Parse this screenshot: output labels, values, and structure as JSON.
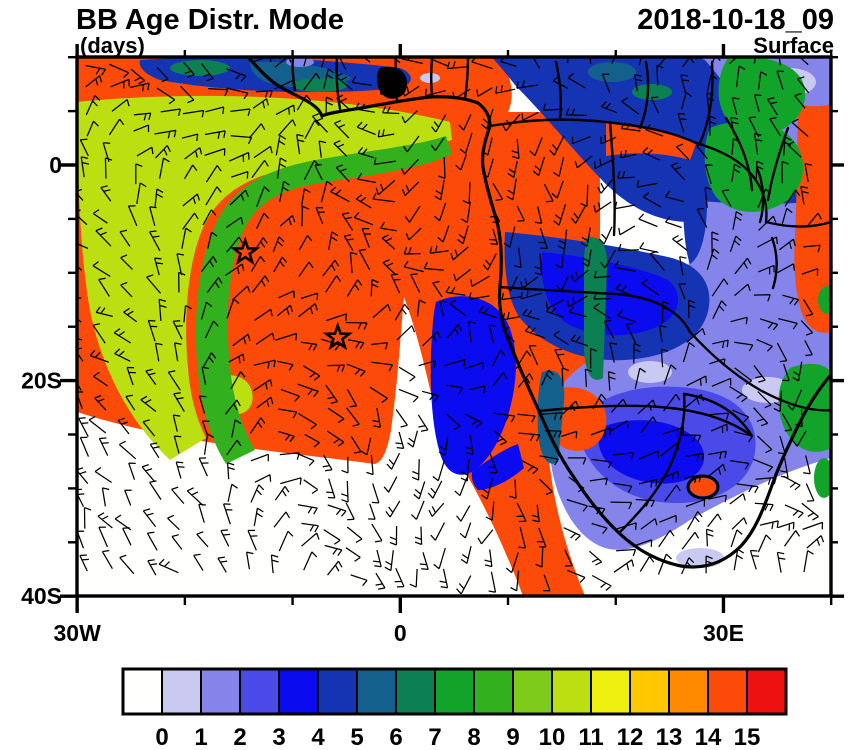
{
  "header": {
    "title": "BB Age Distr. Mode",
    "units_label": "(days)",
    "datetime_label": "2018-10-18_09",
    "level_label": "Surface"
  },
  "chart_data": {
    "type": "heatmap",
    "subtype": "geographic filled-contour map (age in days) with wind-barb overlay over Africa / South Atlantic",
    "title": "BB Age Distr. Mode",
    "units": "days",
    "datetime": "2018-10-18_09",
    "level": "Surface",
    "map_extent": {
      "lon_min": -30,
      "lon_max": 40,
      "lat_min": -41,
      "lat_max": 10
    },
    "xaxis": {
      "tick_labels": [
        "30W",
        "0",
        "30E"
      ],
      "tick_lons": [
        -30,
        0,
        30
      ],
      "minor_tick_interval_deg": 10
    },
    "yaxis": {
      "tick_labels": [
        "0",
        "20S",
        "40S"
      ],
      "tick_lats": [
        0,
        -20,
        -40
      ],
      "minor_tick_interval_deg": 5
    },
    "colorbar": {
      "orientation": "horizontal",
      "tick_labels": [
        "0",
        "1",
        "2",
        "3",
        "4",
        "5",
        "6",
        "7",
        "8",
        "9",
        "10",
        "11",
        "12",
        "13",
        "14",
        "15"
      ],
      "cell_colors": [
        "#FFFFFE",
        "#C9C9F2",
        "#8484EA",
        "#4A4AE8",
        "#0B0BEF",
        "#1434B4",
        "#14608C",
        "#0C8052",
        "#12A32A",
        "#33B01E",
        "#7FCB1C",
        "#BCDF12",
        "#EFEF10",
        "#FFC800",
        "#FF8A00",
        "#FC4A09",
        "#EE1111"
      ]
    },
    "wind_overlay": "wind barbs",
    "markers": [
      {
        "shape": "star",
        "lon": -14.4,
        "lat": -8.1
      },
      {
        "shape": "star",
        "lon": -5.8,
        "lat": -16.0
      }
    ],
    "features_summary": [
      {
        "value_range": "14-15",
        "color": "orange-red",
        "area": "large biomass-burning plume over Gulf of Guinea, central Africa and subtropical South Atlantic, with a band curving to the SE toward 30S"
      },
      {
        "value_range": "11-12",
        "color": "yellow-green",
        "area": "outer arc on the NW flank of the plume (eastern tropical Atlantic)"
      },
      {
        "value_range": "9-10",
        "color": "green",
        "area": "inner arc between yellow-green band and plume core"
      },
      {
        "value_range": "5-6",
        "color": "dark blue",
        "area": "Sahel / Chad / northern DR Congo region"
      },
      {
        "value_range": "4-5",
        "color": "bright blue",
        "area": "patch off the Angola coast and DR Congo core"
      },
      {
        "value_range": "2-3",
        "color": "periwinkle",
        "area": "East Africa and southern Africa"
      },
      {
        "value_range": "8-9",
        "color": "emerald green",
        "area": "Lake Victoria region and SE African coast"
      },
      {
        "value_range": "0-1",
        "color": "white",
        "area": "Southern Ocean / mid-latitude South Atlantic and SW Indian Ocean"
      }
    ]
  }
}
